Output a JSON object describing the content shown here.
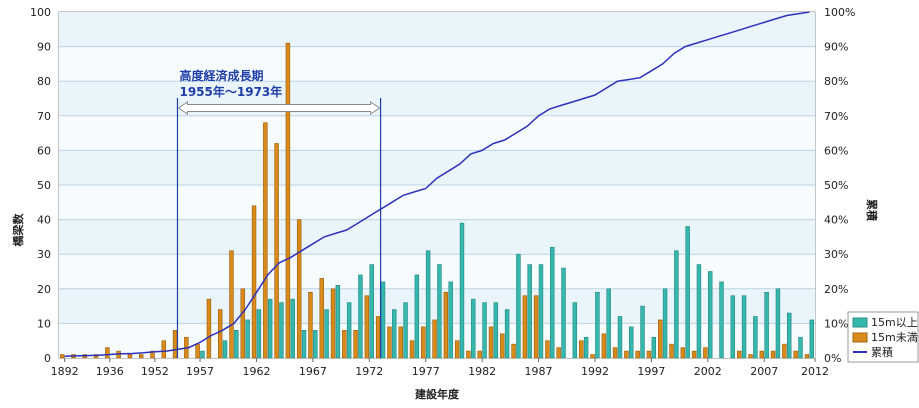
{
  "chart_data": {
    "type": "bar",
    "xlabel": "建設年度",
    "ylabel_left": "橋梁数",
    "ylabel_right": "累積",
    "ylim": [
      0,
      100
    ],
    "y2lim": [
      0,
      100
    ],
    "y_ticks": [
      "0",
      "10",
      "20",
      "30",
      "40",
      "50",
      "60",
      "70",
      "80",
      "90",
      "100"
    ],
    "y2_ticks": [
      "0%",
      "10%",
      "20%",
      "30%",
      "40%",
      "50%",
      "60%",
      "70%",
      "80%",
      "90%",
      "100%"
    ],
    "x_tick_labels": [
      "1892",
      "1936",
      "1952",
      "1957",
      "1962",
      "1967",
      "1972",
      "1977",
      "1982",
      "1987",
      "1992",
      "1997",
      "2002",
      "2007",
      "2012"
    ],
    "x_tick_index": [
      0,
      4,
      8,
      12,
      17,
      22,
      27,
      32,
      37,
      42,
      47,
      52,
      57,
      62,
      67
    ],
    "grid": true,
    "legend_position": "right",
    "annotation": {
      "line1": "高度経済成長期",
      "line2": "1955年～1973年",
      "from_index": 10,
      "to_index": 28
    },
    "series": [
      {
        "name": "15m以上",
        "type": "bar",
        "color": "#35b7ad",
        "values": [
          0,
          0,
          0,
          0,
          0,
          0,
          0,
          0,
          0,
          0,
          0,
          0,
          2,
          0,
          5,
          8,
          11,
          14,
          17,
          16,
          17,
          8,
          8,
          14,
          21,
          16,
          24,
          27,
          22,
          14,
          16,
          24,
          31,
          27,
          22,
          39,
          17,
          16,
          16,
          14,
          30,
          27,
          27,
          32,
          26,
          16,
          6,
          19,
          20,
          12,
          9,
          15,
          6,
          20,
          31,
          38,
          27,
          25,
          22,
          18,
          18,
          12,
          19,
          20,
          13,
          6,
          11
        ]
      },
      {
        "name": "15m未満",
        "type": "bar",
        "color": "#d88a1b",
        "values": [
          1,
          1,
          1,
          1,
          3,
          2,
          1,
          1,
          2,
          5,
          8,
          6,
          4,
          17,
          14,
          31,
          20,
          44,
          68,
          62,
          91,
          40,
          19,
          23,
          20,
          8,
          8,
          18,
          12,
          9,
          9,
          5,
          9,
          11,
          19,
          5,
          2,
          2,
          9,
          7,
          4,
          18,
          18,
          5,
          3,
          0,
          5,
          1,
          7,
          3,
          2,
          2,
          2,
          11,
          4,
          3,
          2,
          3,
          0,
          0,
          2,
          1,
          2,
          2,
          4,
          2,
          1
        ]
      },
      {
        "name": "累積",
        "type": "line",
        "color": "#2c33b8",
        "values": [
          0.5,
          0.6,
          0.7,
          0.8,
          1,
          1.2,
          1.3,
          1.5,
          1.8,
          2,
          2.5,
          3,
          4.5,
          6.5,
          8,
          10,
          14,
          19,
          24,
          27.5,
          29,
          31,
          33,
          35,
          36,
          37,
          39,
          41,
          43,
          45,
          47,
          48,
          49,
          52,
          54,
          56,
          59,
          60,
          62,
          63,
          65,
          67,
          70,
          72,
          73,
          74,
          75,
          76,
          78,
          80,
          80.5,
          81,
          83,
          85,
          88,
          90,
          91,
          92,
          93,
          94,
          95,
          96,
          97,
          98,
          99,
          99.5,
          100
        ]
      }
    ]
  }
}
